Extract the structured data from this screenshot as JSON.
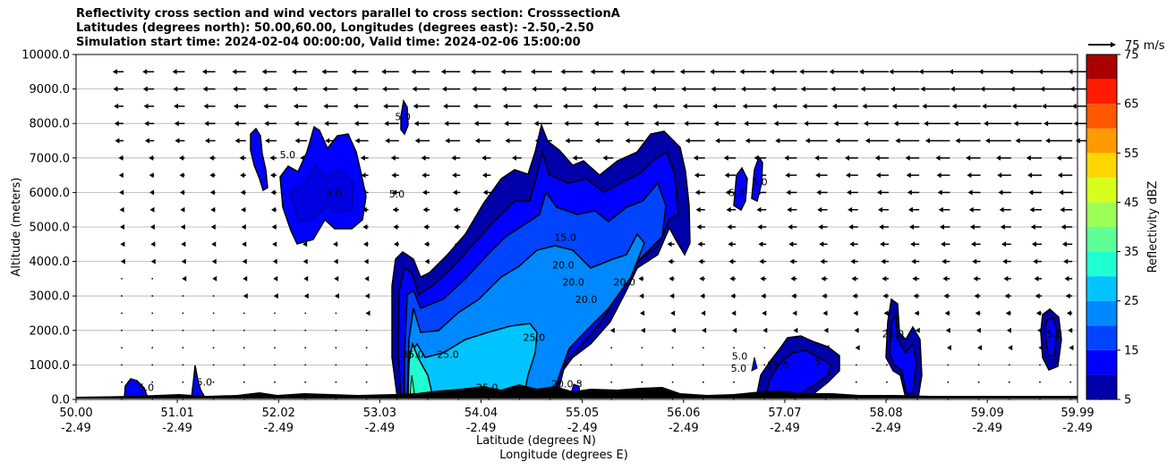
{
  "chart_data": {
    "type": "contour",
    "title_lines": [
      "Reflectivity cross section and wind vectors parallel to cross section: CrosssectionA",
      "Latitudes (degrees north): 50.00,60.00, Longitudes (degrees east): -2.50,-2.50",
      "Simulation start time: 2024-02-04 00:00:00, Valid time: 2024-02-06 15:00:00"
    ],
    "xlabel": "Latitude (degrees N)",
    "xlabel2": "Longitude (degrees E)",
    "ylabel": "Altitude (meters)",
    "xlim": [
      50.0,
      59.99
    ],
    "ylim": [
      0,
      10000
    ],
    "x_ticks": [
      {
        "lat": 50.0,
        "label": "50.00",
        "lon_label": "-2.49"
      },
      {
        "lat": 51.01,
        "label": "51.01",
        "lon_label": "-2.49"
      },
      {
        "lat": 52.02,
        "label": "52.02",
        "lon_label": "-2.49"
      },
      {
        "lat": 53.03,
        "label": "53.03",
        "lon_label": "-2.49"
      },
      {
        "lat": 54.04,
        "label": "54.04",
        "lon_label": "-2.49"
      },
      {
        "lat": 55.05,
        "label": "55.05",
        "lon_label": "-2.49"
      },
      {
        "lat": 56.06,
        "label": "56.06",
        "lon_label": "-2.49"
      },
      {
        "lat": 57.07,
        "label": "57.07",
        "lon_label": "-2.49"
      },
      {
        "lat": 58.08,
        "label": "58.08",
        "lon_label": "-2.49"
      },
      {
        "lat": 59.09,
        "label": "59.09",
        "lon_label": "-2.49"
      },
      {
        "lat": 59.99,
        "label": "59.99",
        "lon_label": "-2.49"
      }
    ],
    "y_ticks": [
      {
        "value": 0,
        "label": "0.0"
      },
      {
        "value": 1000,
        "label": "1000.0"
      },
      {
        "value": 2000,
        "label": "2000.0"
      },
      {
        "value": 3000,
        "label": "3000.0"
      },
      {
        "value": 4000,
        "label": "4000.0"
      },
      {
        "value": 5000,
        "label": "5000.0"
      },
      {
        "value": 6000,
        "label": "6000.0"
      },
      {
        "value": 7000,
        "label": "7000.0"
      },
      {
        "value": 8000,
        "label": "8000.0"
      },
      {
        "value": 9000,
        "label": "9000.0"
      },
      {
        "value": 10000,
        "label": "10000.0"
      }
    ],
    "grid": "horizontal",
    "colorbar": {
      "label": "Reflectivity dBZ",
      "levels": [
        5,
        10,
        15,
        20,
        25,
        30,
        35,
        40,
        45,
        50,
        55,
        60,
        65,
        70,
        75
      ],
      "colors": [
        "#0000aa",
        "#0000ff",
        "#0044ff",
        "#0088ff",
        "#00c4ff",
        "#1fffd2",
        "#5eff96",
        "#9bff58",
        "#d7ff1c",
        "#ffd600",
        "#ff9a00",
        "#ff5800",
        "#ff1c00",
        "#aa0000"
      ],
      "tick_labels": [
        "5",
        "15",
        "25",
        "35",
        "45",
        "55",
        "65",
        "75"
      ]
    },
    "wind_reference": {
      "label": "75 m/s"
    },
    "contour_labels": [
      {
        "lat": 50.7,
        "alt": 250,
        "text": "5.0"
      },
      {
        "lat": 51.28,
        "alt": 400,
        "text": "5.0"
      },
      {
        "lat": 52.11,
        "alt": 7000,
        "text": "5.0"
      },
      {
        "lat": 52.57,
        "alt": 5900,
        "text": "5.0"
      },
      {
        "lat": 53.2,
        "alt": 5850,
        "text": "5.0"
      },
      {
        "lat": 53.26,
        "alt": 8100,
        "text": "5.0"
      },
      {
        "lat": 53.36,
        "alt": 1200,
        "text": "35.0"
      },
      {
        "lat": 53.71,
        "alt": 1200,
        "text": "25.0"
      },
      {
        "lat": 54.1,
        "alt": 250,
        "text": "25.0"
      },
      {
        "lat": 54.57,
        "alt": 1700,
        "text": "25.0"
      },
      {
        "lat": 54.88,
        "alt": 4600,
        "text": "15.0"
      },
      {
        "lat": 54.86,
        "alt": 3800,
        "text": "20.0"
      },
      {
        "lat": 54.96,
        "alt": 3300,
        "text": "20.0"
      },
      {
        "lat": 55.09,
        "alt": 2800,
        "text": "20.0"
      },
      {
        "lat": 55.47,
        "alt": 3300,
        "text": "20.0"
      },
      {
        "lat": 54.85,
        "alt": 350,
        "text": "20.0"
      },
      {
        "lat": 55.02,
        "alt": 350,
        "text": "5"
      },
      {
        "lat": 56.59,
        "alt": 5900,
        "text": "5.0"
      },
      {
        "lat": 56.82,
        "alt": 6200,
        "text": "5.0"
      },
      {
        "lat": 56.62,
        "alt": 1150,
        "text": "5.0"
      },
      {
        "lat": 56.61,
        "alt": 800,
        "text": "5.0"
      },
      {
        "lat": 57.0,
        "alt": 900,
        "text": "15.0"
      },
      {
        "lat": 57.4,
        "alt": 1000,
        "text": "5"
      },
      {
        "lat": 58.15,
        "alt": 1800,
        "text": "25.0"
      },
      {
        "lat": 59.76,
        "alt": 1800,
        "text": "5.0"
      }
    ]
  }
}
